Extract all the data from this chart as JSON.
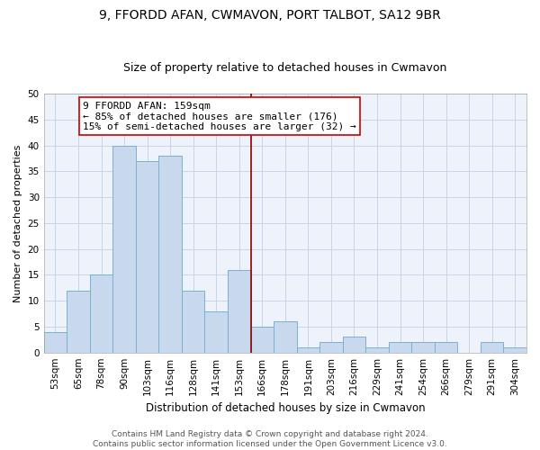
{
  "title1": "9, FFORDD AFAN, CWMAVON, PORT TALBOT, SA12 9BR",
  "title2": "Size of property relative to detached houses in Cwmavon",
  "xlabel": "Distribution of detached houses by size in Cwmavon",
  "ylabel": "Number of detached properties",
  "bar_labels": [
    "53sqm",
    "65sqm",
    "78sqm",
    "90sqm",
    "103sqm",
    "116sqm",
    "128sqm",
    "141sqm",
    "153sqm",
    "166sqm",
    "178sqm",
    "191sqm",
    "203sqm",
    "216sqm",
    "229sqm",
    "241sqm",
    "254sqm",
    "266sqm",
    "279sqm",
    "291sqm",
    "304sqm"
  ],
  "bar_values": [
    4,
    12,
    15,
    40,
    37,
    38,
    12,
    8,
    16,
    5,
    6,
    1,
    2,
    3,
    1,
    2,
    2,
    2,
    0,
    2,
    1
  ],
  "bar_color": "#c8d9ee",
  "bar_edge_color": "#7aafd4",
  "vline_color": "#8b0000",
  "annotation_line1": "9 FFORDD AFAN: 159sqm",
  "annotation_line2": "← 85% of detached houses are smaller (176)",
  "annotation_line3": "15% of semi-detached houses are larger (32) →",
  "annotation_box_color": "#ffffff",
  "annotation_box_edge": "#cc0000",
  "ylim": [
    0,
    50
  ],
  "yticks": [
    0,
    5,
    10,
    15,
    20,
    25,
    30,
    35,
    40,
    45,
    50
  ],
  "grid_color": "#c8d4e8",
  "background_color": "#eef2fa",
  "footer_text": "Contains HM Land Registry data © Crown copyright and database right 2024.\nContains public sector information licensed under the Open Government Licence v3.0.",
  "title1_fontsize": 10,
  "title2_fontsize": 9,
  "xlabel_fontsize": 8.5,
  "ylabel_fontsize": 8,
  "tick_fontsize": 7.5,
  "annotation_fontsize": 8,
  "footer_fontsize": 6.5
}
